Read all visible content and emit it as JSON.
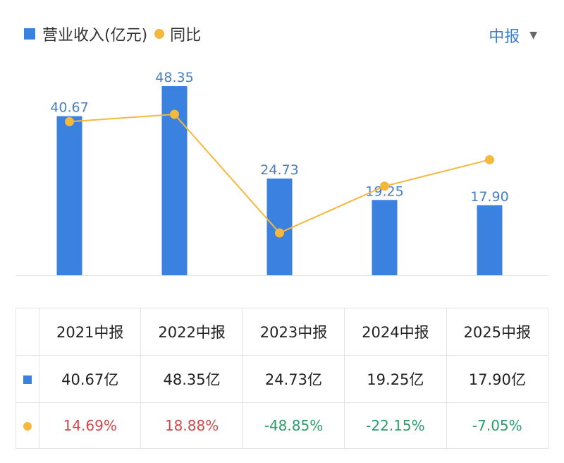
{
  "legend": {
    "bar_label": "营业收入(亿元)",
    "line_label": "同比"
  },
  "period_selector": {
    "label": "中报"
  },
  "colors": {
    "bar": "#3b82e0",
    "line": "#f5b83d",
    "label": "#4a7fc0",
    "positive": "#d0474a",
    "negative": "#2a9d6e"
  },
  "chart_data": {
    "type": "bar",
    "categories": [
      "2021中报",
      "2022中报",
      "2023中报",
      "2024中报",
      "2025中报"
    ],
    "series": [
      {
        "name": "营业收入(亿元)",
        "type": "bar",
        "values": [
          40.67,
          48.35,
          24.73,
          19.25,
          17.9
        ],
        "labels": [
          "40.67",
          "48.35",
          "24.73",
          "19.25",
          "17.90"
        ]
      },
      {
        "name": "同比",
        "type": "line",
        "values": [
          14.69,
          18.88,
          -48.85,
          -22.15,
          -7.05
        ]
      }
    ]
  },
  "table": {
    "headers": [
      "2021中报",
      "2022中报",
      "2023中报",
      "2024中报",
      "2025中报"
    ],
    "revenue": [
      "40.67亿",
      "48.35亿",
      "24.73亿",
      "19.25亿",
      "17.90亿"
    ],
    "yoy": [
      "14.69%",
      "18.88%",
      "-48.85%",
      "-22.15%",
      "-7.05%"
    ]
  }
}
